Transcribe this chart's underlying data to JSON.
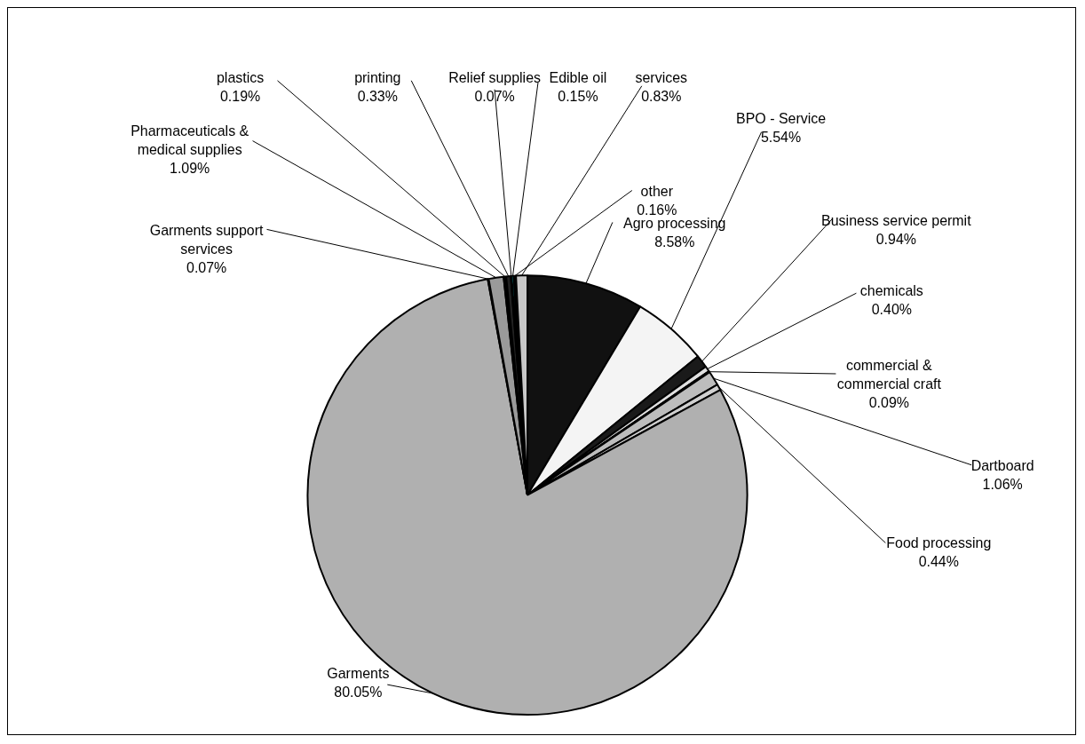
{
  "chart_data": {
    "type": "pie",
    "categories": [
      "Agro processing",
      "BPO - Service",
      "Business service permit",
      "chemicals",
      "commercial & commercial craft",
      "Dartboard",
      "Food processing",
      "Garments",
      "Garments support services",
      "Pharmaceuticals & medical supplies",
      "plastics",
      "printing",
      "Relief supplies",
      "Edible oil",
      "other",
      "services"
    ],
    "values": [
      8.58,
      5.54,
      0.94,
      0.4,
      0.09,
      1.06,
      0.44,
      80.05,
      0.07,
      1.09,
      0.19,
      0.33,
      0.07,
      0.15,
      0.16,
      0.83
    ],
    "value_labels": [
      "8.58%",
      "5.54%",
      "0.94%",
      "0.40%",
      "0.09%",
      "1.06%",
      "0.44%",
      "80.05%",
      "0.07%",
      "1.09%",
      "0.19%",
      "0.33%",
      "0.07%",
      "0.15%",
      "0.16%",
      "0.83%"
    ],
    "colors": [
      "#111111",
      "#f4f4f4",
      "#1a1a1a",
      "#e0e0e0",
      "#777777",
      "#bdbdbd",
      "#d0d0d0",
      "#b0b0b0",
      "#8a8a8a",
      "#9a9a9a",
      "#000000",
      "#222222",
      "#ffffff",
      "#00c8d0",
      "#000000",
      "#c8c8c8"
    ],
    "legend": false
  }
}
